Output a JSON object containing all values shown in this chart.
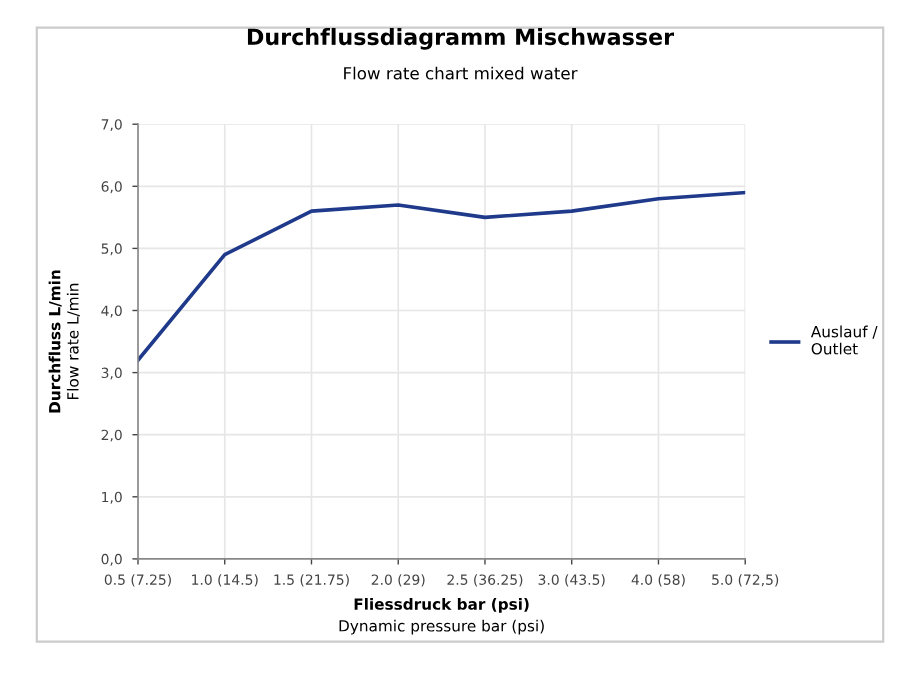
{
  "chart_data": {
    "type": "line",
    "title": "Durchflussdiagramm Mischwasser",
    "subtitle": "Flow rate chart mixed water",
    "xlabel": "Fliessdruck bar (psi)\nDynamic pressure bar (psi)",
    "ylabel": "Durchfluss L/min\nFlow rate L/min",
    "categories": [
      "0.5 (7.25)",
      "1.0 (14.5)",
      "1.5 (21.75)",
      "2.0 (29)",
      "2.5 (36.25)",
      "3.0 (43.5)",
      "4.0 (58)",
      "5.0 (72,5)"
    ],
    "series": [
      {
        "name": "Auslauf /\nOutlet",
        "color": "#1f3a8a",
        "values": [
          3.2,
          4.9,
          5.6,
          5.7,
          5.5,
          5.6,
          5.8,
          5.9
        ]
      }
    ],
    "ylim": [
      0,
      7
    ],
    "yticks": [
      {
        "value": 0,
        "label": "0,0"
      },
      {
        "value": 1,
        "label": "1,0"
      },
      {
        "value": 2,
        "label": "2,0"
      },
      {
        "value": 3,
        "label": "3,0"
      },
      {
        "value": 4,
        "label": "4,0"
      },
      {
        "value": 5,
        "label": "5,0"
      },
      {
        "value": 6,
        "label": "6,0"
      },
      {
        "value": 7,
        "label": "7,0"
      }
    ],
    "grid": true,
    "legend": "right",
    "marker": "none",
    "line_style": "solid"
  }
}
